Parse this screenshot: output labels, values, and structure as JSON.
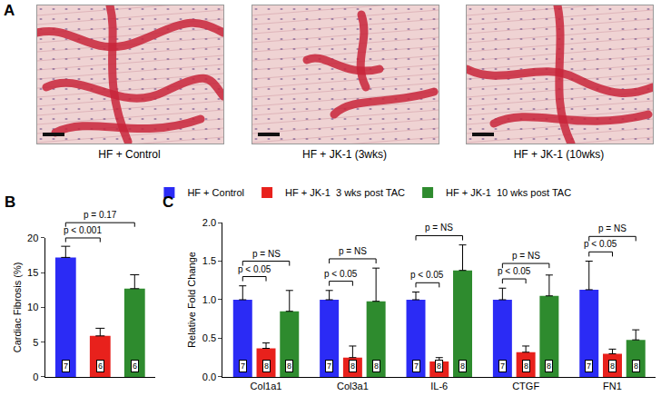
{
  "panel_a": {
    "label": "A",
    "captions": [
      "HF + Control",
      "HF + JK-1 (3wks)",
      "HF + JK-1 (10wks)"
    ]
  },
  "chart_data": [
    {
      "label": "B",
      "type": "bar",
      "categories": [
        null,
        null,
        null
      ],
      "values": [
        17.2,
        5.9,
        12.7
      ],
      "errors": [
        1.6,
        1.1,
        2.0
      ],
      "n": [
        7,
        6,
        6
      ],
      "colors": [
        "#2b2bf5",
        "#e8211c",
        "#2e8b2e"
      ],
      "ylabel": "Cardiac Fibrosis (%)",
      "ylim": [
        0,
        20
      ],
      "yticks": [
        0,
        5,
        10,
        15,
        20
      ],
      "comparisons": [
        {
          "from": 0,
          "to": 1,
          "label": "p < 0.001"
        },
        {
          "from": 0,
          "to": 2,
          "label": "p = 0.17"
        }
      ],
      "tick_labels": "y",
      "grid": false
    },
    {
      "label": "C",
      "type": "bar",
      "categories": [
        "Col1a1",
        "Col3a1",
        "IL-6",
        "CTGF",
        "FN1"
      ],
      "series": [
        {
          "name": "HF + Control",
          "color": "#2b2bf5",
          "values": [
            1.0,
            1.0,
            1.0,
            1.0,
            1.13
          ],
          "errors": [
            0.18,
            0.12,
            0.1,
            0.15,
            0.37
          ],
          "n": [
            7,
            7,
            7,
            7,
            7
          ]
        },
        {
          "name": "HF + JK-1  3 wks post TAC",
          "color": "#e8211c",
          "values": [
            0.37,
            0.25,
            0.2,
            0.32,
            0.3
          ],
          "errors": [
            0.07,
            0.15,
            0.05,
            0.08,
            0.06
          ],
          "n": [
            8,
            8,
            8,
            8,
            8
          ]
        },
        {
          "name": "HF + JK-1  10 wks post TAC",
          "color": "#2e8b2e",
          "values": [
            0.85,
            0.98,
            1.38,
            1.05,
            0.48
          ],
          "errors": [
            0.27,
            0.43,
            0.33,
            0.27,
            0.13
          ],
          "n": [
            8,
            8,
            8,
            8,
            8
          ]
        }
      ],
      "ylabel": "Relative Fold Change",
      "ylim": [
        0,
        2
      ],
      "yticks": [
        {
          "value": 0,
          "label": "0.0"
        },
        0.5,
        {
          "value": 1,
          "label": "1.0"
        },
        1.5,
        {
          "value": 2,
          "label": "2.0"
        }
      ],
      "comparisons": [
        {
          "from": 0,
          "to": 1,
          "labels": [
            "p < 0.05",
            "p < 0.05",
            "p < 0.05",
            "p < 0.05",
            "p < 0.05"
          ]
        },
        {
          "from": 0,
          "to": 2,
          "labels": [
            "p = NS",
            "p = NS",
            "p = NS",
            "p = NS",
            "p = NS"
          ]
        }
      ],
      "legend": "top",
      "grid": false
    }
  ]
}
